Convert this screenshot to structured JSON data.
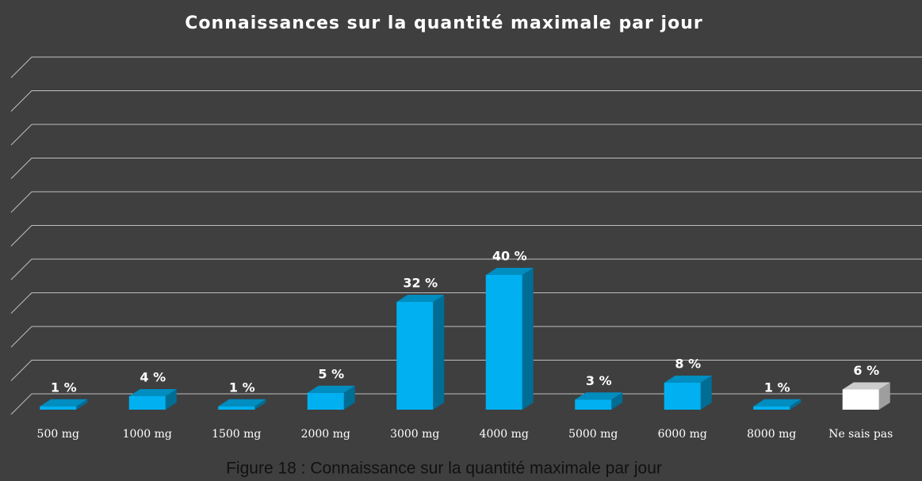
{
  "chart_data": {
    "type": "bar3d",
    "title": "Connaissances sur la quantité maximale par jour",
    "categories": [
      "500 mg",
      "1000 mg",
      "1500 mg",
      "2000 mg",
      "3000 mg",
      "4000 mg",
      "5000 mg",
      "6000 mg",
      "8000 mg",
      "Ne sais pas"
    ],
    "values": [
      1,
      4,
      1,
      5,
      32,
      40,
      3,
      8,
      1,
      6
    ],
    "value_labels": [
      "1 %",
      "4 %",
      "1 %",
      "5 %",
      "32 %",
      "40 %",
      "3 %",
      "8 %",
      "1 %",
      "6 %"
    ],
    "colors": [
      "#00b0f0",
      "#00b0f0",
      "#00b0f0",
      "#00b0f0",
      "#00b0f0",
      "#00b0f0",
      "#00b0f0",
      "#00b0f0",
      "#00b0f0",
      "#ffffff"
    ],
    "ylim": [
      0,
      100
    ],
    "yticks": [
      0,
      10,
      20,
      30,
      40,
      50,
      60,
      70,
      80,
      90,
      100
    ],
    "grid": true,
    "caption": "Figure 18 : Connaissance sur la quantité maximale par jour"
  }
}
